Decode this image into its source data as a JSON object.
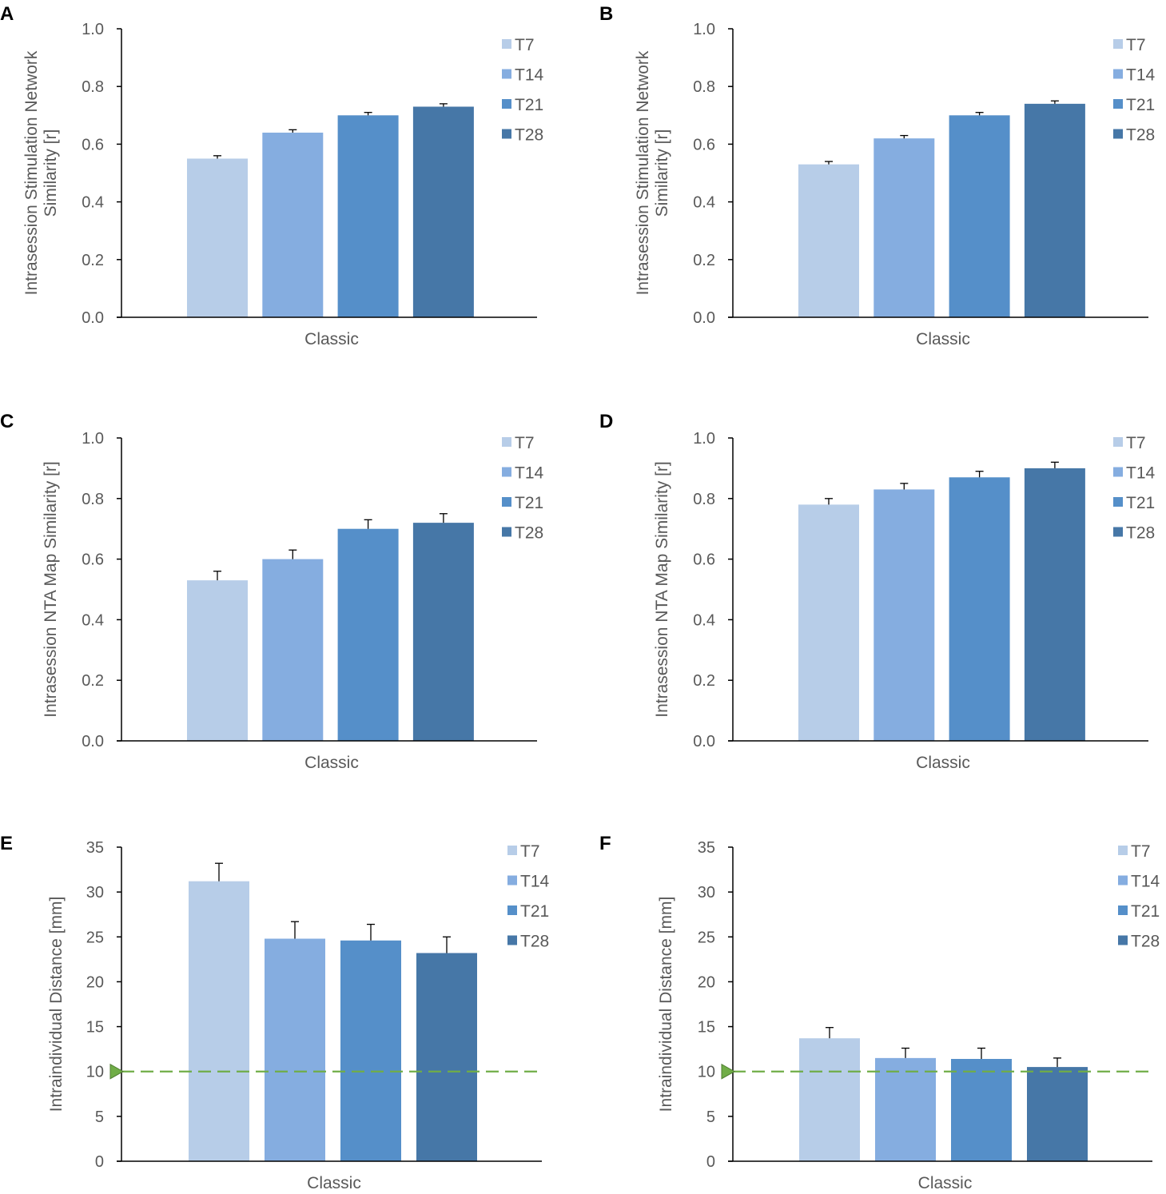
{
  "colors": {
    "T7": "#b7cde8",
    "T14": "#85ade0",
    "T21": "#558fc9",
    "T28": "#4677a7",
    "axis": "#000000",
    "error_bar": "#000000",
    "reference_line": "#70ad47"
  },
  "chart_data": [
    {
      "panel": "A",
      "type": "bar",
      "categories": [
        "Classic"
      ],
      "series": [
        {
          "name": "T7",
          "values": [
            0.55
          ],
          "error": [
            0.01
          ]
        },
        {
          "name": "T14",
          "values": [
            0.64
          ],
          "error": [
            0.01
          ]
        },
        {
          "name": "T21",
          "values": [
            0.7
          ],
          "error": [
            0.01
          ]
        },
        {
          "name": "T28",
          "values": [
            0.73
          ],
          "error": [
            0.01
          ]
        }
      ],
      "xlabel": "Classic",
      "ylabel": [
        "Intrasession Stimulation Network",
        "Similarity [r]"
      ],
      "ylim": [
        0,
        1.0
      ],
      "yticks": [
        "0.0",
        "0.2",
        "0.4",
        "0.6",
        "0.8",
        "1.0"
      ],
      "legend_position": "top-right"
    },
    {
      "panel": "B",
      "type": "bar",
      "categories": [
        "Classic"
      ],
      "series": [
        {
          "name": "T7",
          "values": [
            0.53
          ],
          "error": [
            0.01
          ]
        },
        {
          "name": "T14",
          "values": [
            0.62
          ],
          "error": [
            0.01
          ]
        },
        {
          "name": "T21",
          "values": [
            0.7
          ],
          "error": [
            0.01
          ]
        },
        {
          "name": "T28",
          "values": [
            0.74
          ],
          "error": [
            0.01
          ]
        }
      ],
      "xlabel": "Classic",
      "ylabel": [
        "Intrasession Stimulation Network",
        "Similarity [r]"
      ],
      "ylim": [
        0,
        1.0
      ],
      "yticks": [
        "0.0",
        "0.2",
        "0.4",
        "0.6",
        "0.8",
        "1.0"
      ],
      "legend_position": "top-right"
    },
    {
      "panel": "C",
      "type": "bar",
      "categories": [
        "Classic"
      ],
      "series": [
        {
          "name": "T7",
          "values": [
            0.53
          ],
          "error": [
            0.03
          ]
        },
        {
          "name": "T14",
          "values": [
            0.6
          ],
          "error": [
            0.03
          ]
        },
        {
          "name": "T21",
          "values": [
            0.7
          ],
          "error": [
            0.03
          ]
        },
        {
          "name": "T28",
          "values": [
            0.72
          ],
          "error": [
            0.03
          ]
        }
      ],
      "xlabel": "Classic",
      "ylabel": [
        "Intrasession NTA Map Similarity [r]"
      ],
      "ylim": [
        0,
        1.0
      ],
      "yticks": [
        "0.0",
        "0.2",
        "0.4",
        "0.6",
        "0.8",
        "1.0"
      ],
      "legend_position": "top-right"
    },
    {
      "panel": "D",
      "type": "bar",
      "categories": [
        "Classic"
      ],
      "series": [
        {
          "name": "T7",
          "values": [
            0.78
          ],
          "error": [
            0.02
          ]
        },
        {
          "name": "T14",
          "values": [
            0.83
          ],
          "error": [
            0.02
          ]
        },
        {
          "name": "T21",
          "values": [
            0.87
          ],
          "error": [
            0.02
          ]
        },
        {
          "name": "T28",
          "values": [
            0.9
          ],
          "error": [
            0.02
          ]
        }
      ],
      "xlabel": "Classic",
      "ylabel": [
        "Intrasession NTA Map Similarity [r]"
      ],
      "ylim": [
        0,
        1.0
      ],
      "yticks": [
        "0.0",
        "0.2",
        "0.4",
        "0.6",
        "0.8",
        "1.0"
      ],
      "legend_position": "top-right"
    },
    {
      "panel": "E",
      "type": "bar",
      "categories": [
        "Classic"
      ],
      "series": [
        {
          "name": "T7",
          "values": [
            31.2
          ],
          "error": [
            2.0
          ]
        },
        {
          "name": "T14",
          "values": [
            24.8
          ],
          "error": [
            1.9
          ]
        },
        {
          "name": "T21",
          "values": [
            24.6
          ],
          "error": [
            1.8
          ]
        },
        {
          "name": "T28",
          "values": [
            23.2
          ],
          "error": [
            1.8
          ]
        }
      ],
      "xlabel": "Classic",
      "ylabel": [
        "Intraindividual Distance [mm]"
      ],
      "ylim": [
        0,
        35
      ],
      "yticks": [
        "0",
        "5",
        "10",
        "15",
        "20",
        "25",
        "30",
        "35"
      ],
      "reference_line": 10,
      "legend_position": "top-right"
    },
    {
      "panel": "F",
      "type": "bar",
      "categories": [
        "Classic"
      ],
      "series": [
        {
          "name": "T7",
          "values": [
            13.7
          ],
          "error": [
            1.2
          ]
        },
        {
          "name": "T14",
          "values": [
            11.5
          ],
          "error": [
            1.1
          ]
        },
        {
          "name": "T21",
          "values": [
            11.4
          ],
          "error": [
            1.2
          ]
        },
        {
          "name": "T28",
          "values": [
            10.5
          ],
          "error": [
            1.0
          ]
        }
      ],
      "xlabel": "Classic",
      "ylabel": [
        "Intraindividual Distance [mm]"
      ],
      "ylim": [
        0,
        35
      ],
      "yticks": [
        "0",
        "5",
        "10",
        "15",
        "20",
        "25",
        "30",
        "35"
      ],
      "reference_line": 10,
      "legend_position": "top-right"
    }
  ]
}
